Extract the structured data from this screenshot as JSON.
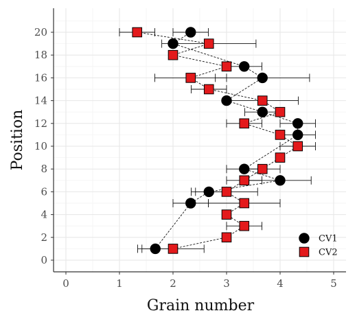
{
  "chart_data": {
    "type": "scatter",
    "xlabel": "Grain number",
    "ylabel": "Position",
    "xlim": [
      0,
      5
    ],
    "ylim": [
      0,
      21
    ],
    "xticks": [
      "0",
      "1",
      "2",
      "3",
      "4",
      "5"
    ],
    "yticks": [
      "0",
      "2",
      "4",
      "6",
      "8",
      "10",
      "12",
      "14",
      "16",
      "18",
      "20"
    ],
    "grid": true,
    "legend_position": "bottom-right",
    "series": [
      {
        "name": "CV1",
        "color": "#000000",
        "marker": "circle",
        "points": [
          {
            "y": 1,
            "x": 1.67,
            "err": 0.33
          },
          {
            "y": 5,
            "x": 2.33,
            "err": 0.33
          },
          {
            "y": 6,
            "x": 2.67,
            "err": 0.33
          },
          {
            "y": 7,
            "x": 4.0,
            "err": 0.58
          },
          {
            "y": 8,
            "x": 3.33,
            "err": 0.33
          },
          {
            "y": 11,
            "x": 4.33,
            "err": 0.33
          },
          {
            "y": 12,
            "x": 4.33,
            "err": 0.33
          },
          {
            "y": 13,
            "x": 3.67,
            "err": 0.33
          },
          {
            "y": 14,
            "x": 3.0,
            "err": 0.0
          },
          {
            "y": 16,
            "x": 3.67,
            "err": 0.88
          },
          {
            "y": 17,
            "x": 3.33,
            "err": 0.33
          },
          {
            "y": 19,
            "x": 2.0,
            "err": 0.0
          },
          {
            "y": 20,
            "x": 2.33,
            "err": 0.33
          }
        ]
      },
      {
        "name": "CV2",
        "color": "#e31a1c",
        "marker": "square",
        "points": [
          {
            "y": 1,
            "x": 2.0,
            "err": 0.58
          },
          {
            "y": 2,
            "x": 3.0,
            "err": 0.0
          },
          {
            "y": 3,
            "x": 3.33,
            "err": 0.33
          },
          {
            "y": 4,
            "x": 3.0,
            "err": 0.0
          },
          {
            "y": 5,
            "x": 3.33,
            "err": 0.67
          },
          {
            "y": 6,
            "x": 3.0,
            "err": 0.58
          },
          {
            "y": 7,
            "x": 3.33,
            "err": 0.33
          },
          {
            "y": 8,
            "x": 3.67,
            "err": 0.33
          },
          {
            "y": 9,
            "x": 4.0,
            "err": 0.0
          },
          {
            "y": 10,
            "x": 4.33,
            "err": 0.33
          },
          {
            "y": 11,
            "x": 4.0,
            "err": 0.0
          },
          {
            "y": 12,
            "x": 3.33,
            "err": 0.33
          },
          {
            "y": 13,
            "x": 4.0,
            "err": 0.0
          },
          {
            "y": 14,
            "x": 3.67,
            "err": 0.67
          },
          {
            "y": 15,
            "x": 2.67,
            "err": 0.33
          },
          {
            "y": 16,
            "x": 2.33,
            "err": 0.67
          },
          {
            "y": 17,
            "x": 3.0,
            "err": 0.0
          },
          {
            "y": 18,
            "x": 2.0,
            "err": 0.0
          },
          {
            "y": 19,
            "x": 2.67,
            "err": 0.88
          },
          {
            "y": 20,
            "x": 1.33,
            "err": 0.33
          }
        ]
      }
    ]
  }
}
